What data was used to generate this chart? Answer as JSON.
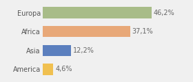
{
  "categories": [
    "America",
    "Asia",
    "Africa",
    "Europa"
  ],
  "values": [
    4.6,
    12.2,
    37.1,
    46.2
  ],
  "labels": [
    "4,6%",
    "12,2%",
    "37,1%",
    "46,2%"
  ],
  "bar_colors": [
    "#f0c050",
    "#5b7fbe",
    "#e8a878",
    "#a8bc88"
  ],
  "xlim": [
    0,
    62
  ],
  "background_color": "#f0f0f0",
  "bar_height": 0.6,
  "label_fontsize": 7.0,
  "tick_fontsize": 7.0
}
